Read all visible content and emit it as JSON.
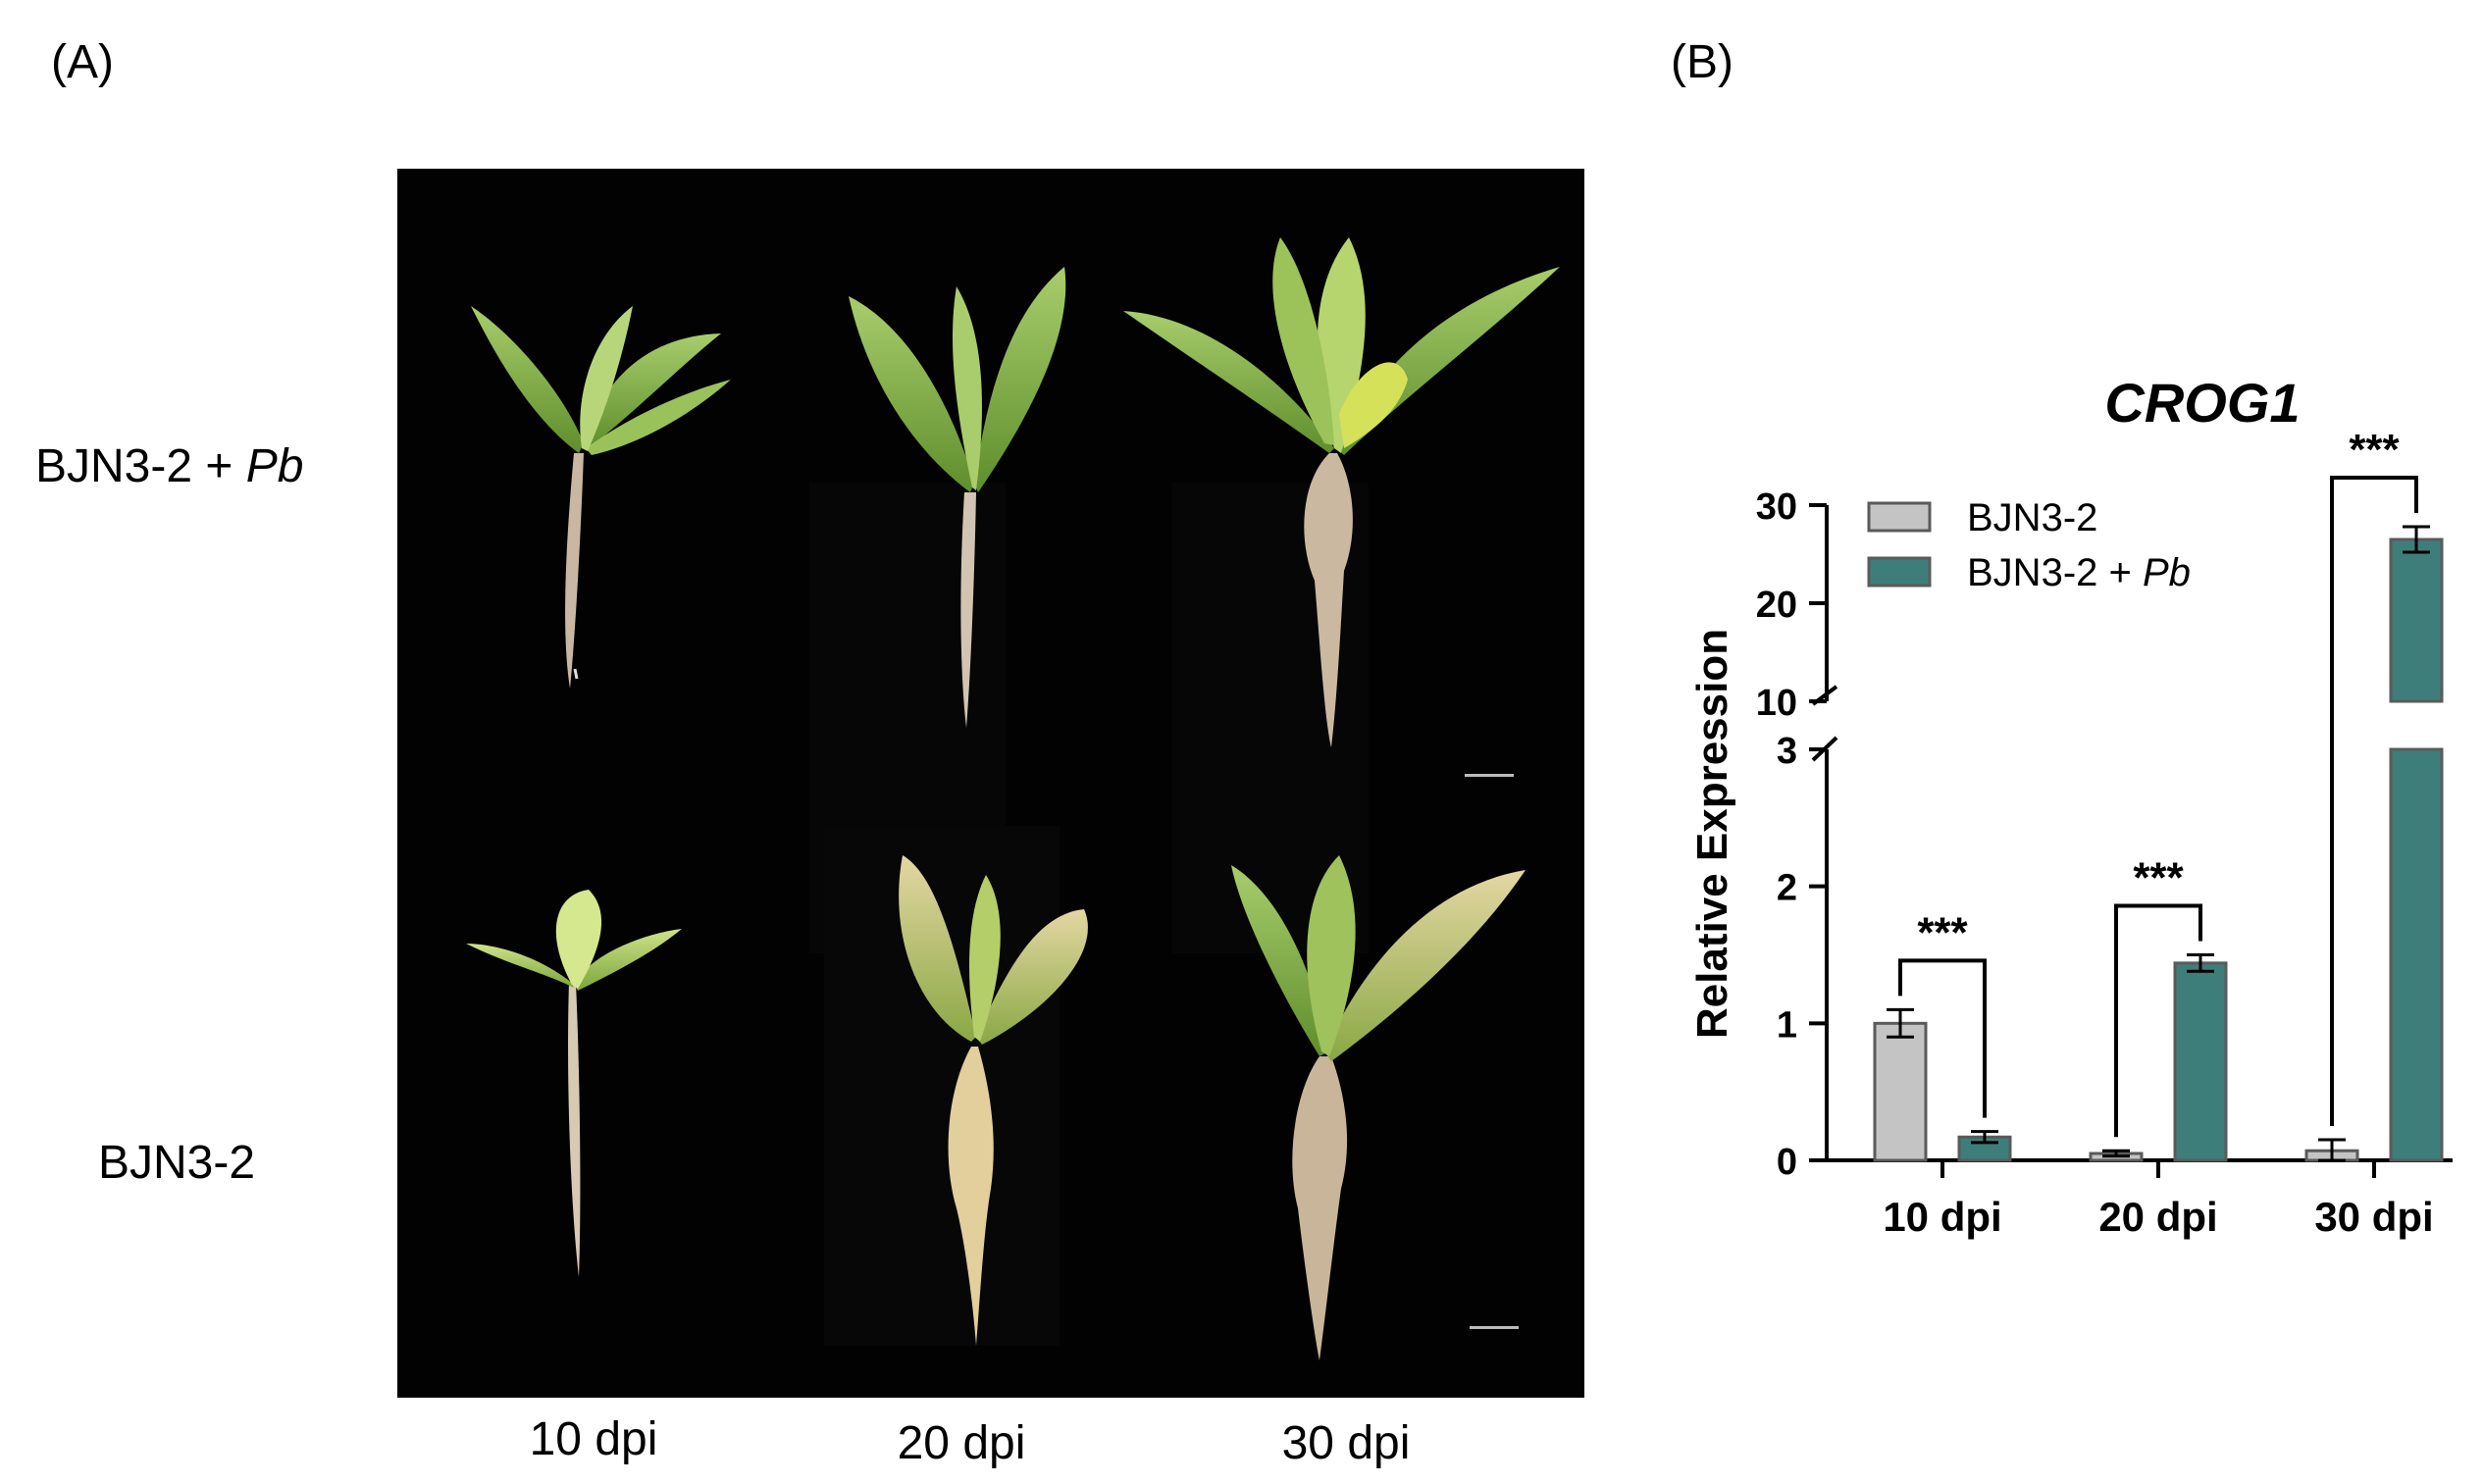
{
  "panel_a": {
    "label": "(A)",
    "rows": [
      {
        "label_prefix": "BJN3-2 + ",
        "label_italic": "Pb"
      },
      {
        "label_prefix": "BJN3-2",
        "label_italic": ""
      }
    ],
    "columns": [
      "10 dpi",
      "20 dpi",
      "30 dpi"
    ]
  },
  "panel_b": {
    "label": "(B)"
  },
  "colors": {
    "BJN3-2": "#c4c4c4",
    "BJN3-2 + Pb": "#3e7e7a",
    "bar_edge": "#5a5a5a"
  },
  "chart_data": {
    "type": "bar",
    "title": "CROG1",
    "ylabel": "Relative Expression",
    "xlabel": "",
    "categories": [
      "10 dpi",
      "20 dpi",
      "30 dpi"
    ],
    "y_axis_break": {
      "lower_segment": [
        0,
        3
      ],
      "upper_segment": [
        10,
        30
      ]
    },
    "yticks_lower": [
      0,
      1,
      2,
      3
    ],
    "yticks_upper": [
      10,
      20,
      30
    ],
    "legend_position": "top-left",
    "series": [
      {
        "name": "BJN3-2",
        "name_italic_suffix": "",
        "values": [
          1.0,
          0.05,
          0.07
        ],
        "errors": [
          0.1,
          0.02,
          0.08
        ]
      },
      {
        "name": "BJN3-2 + ",
        "name_italic_suffix": "Pb",
        "values": [
          0.17,
          1.44,
          26.5
        ],
        "errors": [
          0.04,
          0.06,
          1.3
        ]
      }
    ],
    "significance": [
      "***",
      "***",
      "***"
    ]
  }
}
